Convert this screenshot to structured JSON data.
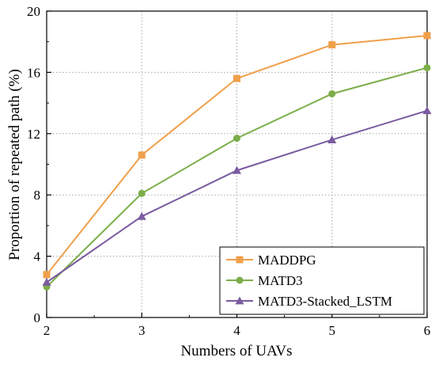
{
  "chart_data": {
    "type": "line",
    "xlabel": "Numbers of UAVs",
    "ylabel": "Proportion of repeated path (%)",
    "x": [
      2,
      3,
      4,
      5,
      6
    ],
    "xlim": [
      2,
      6
    ],
    "ylim": [
      0,
      20
    ],
    "xticks": [
      "2",
      "3",
      "4",
      "5",
      "6"
    ],
    "yticks": [
      "0",
      "4",
      "8",
      "12",
      "16",
      "20"
    ],
    "grid": true,
    "legend_position": "bottom-right",
    "series": [
      {
        "name": "MADDPG",
        "values": [
          2.8,
          10.6,
          15.6,
          17.8,
          18.4
        ],
        "color": "#f0a04b",
        "marker": "square"
      },
      {
        "name": "MATD3",
        "values": [
          2.0,
          8.1,
          11.7,
          14.6,
          16.3
        ],
        "color": "#7cae4a",
        "marker": "circle"
      },
      {
        "name": "MATD3-Stacked_LSTM",
        "values": [
          2.3,
          6.6,
          9.6,
          11.6,
          13.5
        ],
        "color": "#7a5ba0",
        "marker": "triangle"
      }
    ]
  }
}
